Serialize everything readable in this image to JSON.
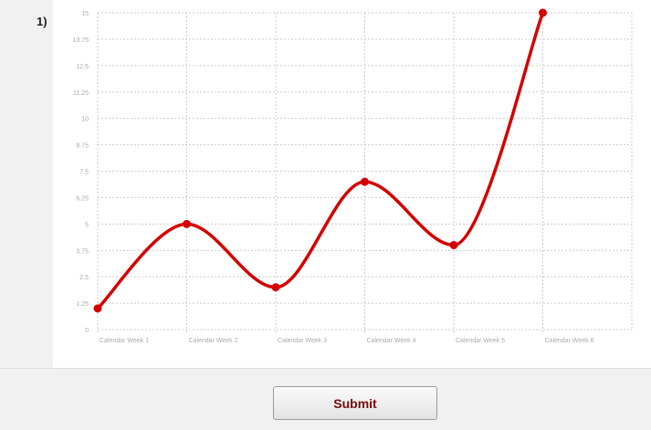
{
  "question": {
    "number": "1)"
  },
  "submit": {
    "label": "Submit"
  },
  "colors": {
    "line": "#d40000",
    "grid": "#cccccc",
    "tick_text": "#aaaaaa"
  },
  "chart_data": {
    "type": "line",
    "title": "",
    "xlabel": "",
    "ylabel": "",
    "categories": [
      "Calendar Week 1",
      "Calendar Week 2",
      "Calendar Week 3",
      "Calendar Week 4",
      "Calendar Week 5",
      "Calendar Week 6"
    ],
    "series": [
      {
        "values": [
          1,
          5,
          2,
          7,
          4,
          15
        ]
      }
    ],
    "y_ticks": [
      "0",
      "1.25",
      "2.5",
      "3.75",
      "5",
      "6.25",
      "7.5",
      "8.75",
      "10",
      "11.25",
      "12.5",
      "13.75",
      "15"
    ],
    "ylim": [
      0,
      15
    ],
    "grid": true,
    "smooth": true
  }
}
